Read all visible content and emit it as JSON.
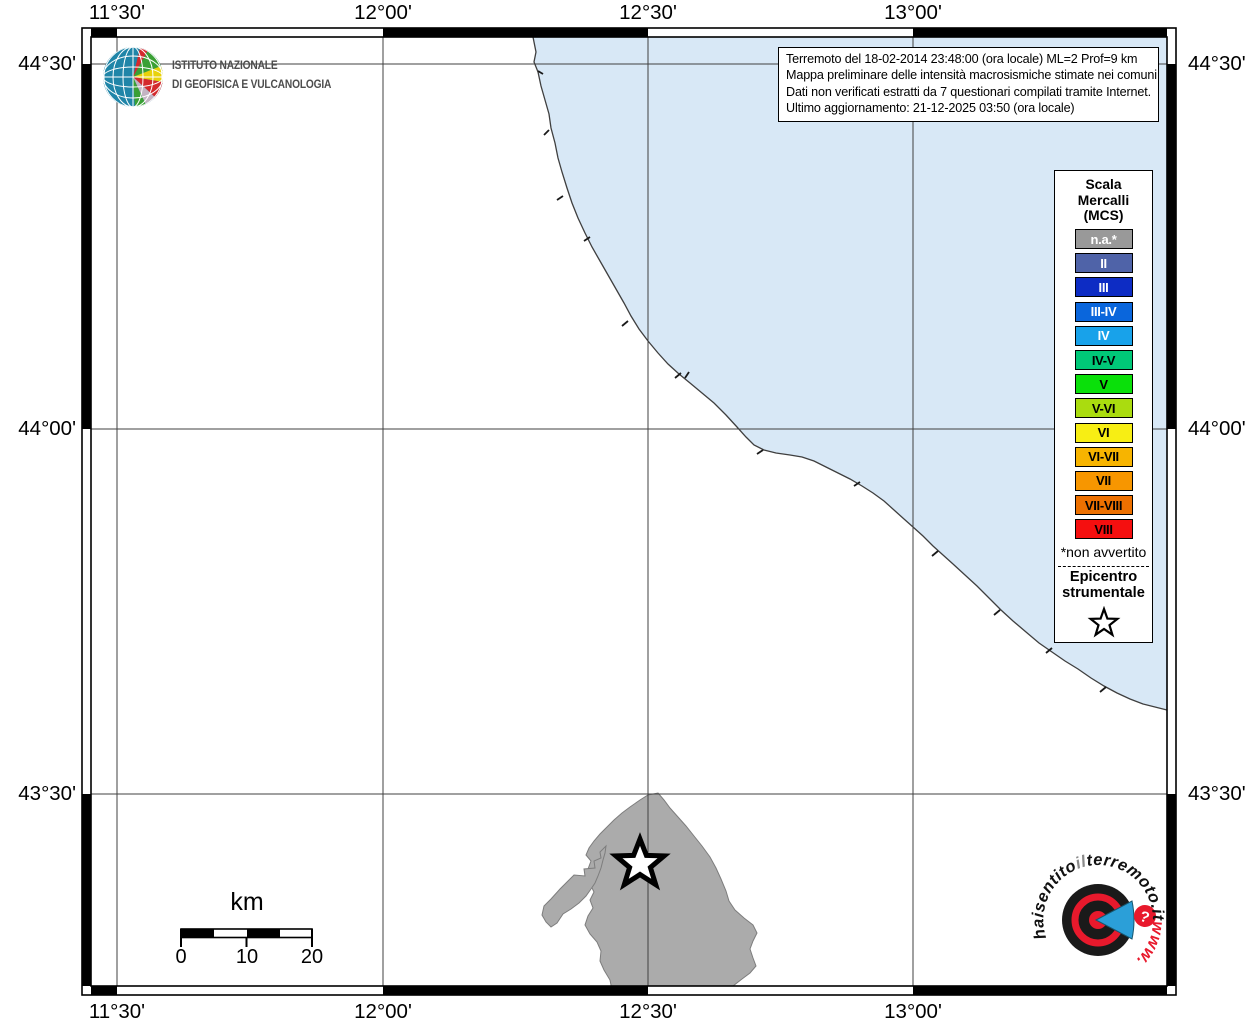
{
  "axes": {
    "top": [
      "11°30'",
      "12°00'",
      "12°30'",
      "13°00'"
    ],
    "bottom": [
      "11°30'",
      "12°00'",
      "12°30'",
      "13°00'"
    ],
    "left": [
      "44°30'",
      "44°00'",
      "43°30'"
    ],
    "right": [
      "44°30'",
      "44°00'",
      "43°30'"
    ]
  },
  "info_box": {
    "lines": [
      "Terremoto del 18-02-2014 23:48:00 (ora locale) ML=2 Prof=9 km",
      "Mappa preliminare delle intensità macrosismiche stimate nei comuni",
      "Dati non verificati estratti da 7 questionari compilati tramite Internet.",
      "Ultimo aggiornamento: 21-12-2025 03:50 (ora locale)"
    ]
  },
  "legend": {
    "title_lines": [
      "Scala",
      "Mercalli",
      "(MCS)"
    ],
    "items": [
      {
        "label": "n.a.*",
        "color": "#999999",
        "text_color": "#ffffff"
      },
      {
        "label": "II",
        "color": "#4f63a8",
        "text_color": "#ffffff"
      },
      {
        "label": "III",
        "color": "#0d2cc4",
        "text_color": "#ffffff"
      },
      {
        "label": "III-IV",
        "color": "#0a66dc",
        "text_color": "#ffffff"
      },
      {
        "label": "IV",
        "color": "#18a2ea",
        "text_color": "#ffffff"
      },
      {
        "label": "IV-V",
        "color": "#00c878",
        "text_color": "#000000"
      },
      {
        "label": "V",
        "color": "#0ae00a",
        "text_color": "#000000"
      },
      {
        "label": "V-VI",
        "color": "#aadc0f",
        "text_color": "#000000"
      },
      {
        "label": "VI",
        "color": "#f7ee14",
        "text_color": "#000000"
      },
      {
        "label": "VI-VII",
        "color": "#f7b400",
        "text_color": "#000000"
      },
      {
        "label": "VII",
        "color": "#f79600",
        "text_color": "#000000"
      },
      {
        "label": "VII-VIII",
        "color": "#ed7000",
        "text_color": "#000000"
      },
      {
        "label": "VIII",
        "color": "#f50f0f",
        "text_color": "#000000"
      }
    ],
    "footnote": "*non avvertito",
    "epicenter_lines": [
      "Epicentro",
      "strumentale"
    ],
    "epicenter_symbol": "star"
  },
  "scale_bar": {
    "title": "km",
    "tick_labels": [
      "0",
      "10",
      "20"
    ]
  },
  "ingv_logo": {
    "line1": "ISTITUTO NAZIONALE",
    "line2": "DI GEOFISICA E VULCANOLOGIA"
  },
  "site_logo": {
    "part1": "haisentito",
    "part2": "il",
    "part3": "terremoto.it",
    "part4": "www.",
    "question_mark": "?"
  },
  "map": {
    "sea_color": "#d8e8f6",
    "land_color": "#ababab",
    "grid_color": "#404040",
    "legend_na_color": "#999999",
    "epicenter": "star at ~12°30' / ~43°22'"
  }
}
